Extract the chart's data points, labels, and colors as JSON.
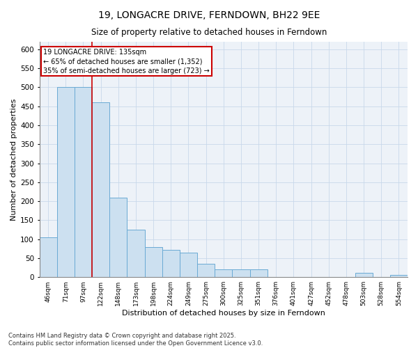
{
  "title": "19, LONGACRE DRIVE, FERNDOWN, BH22 9EE",
  "subtitle": "Size of property relative to detached houses in Ferndown",
  "xlabel": "Distribution of detached houses by size in Ferndown",
  "ylabel": "Number of detached properties",
  "footnote1": "Contains HM Land Registry data © Crown copyright and database right 2025.",
  "footnote2": "Contains public sector information licensed under the Open Government Licence v3.0.",
  "categories": [
    "46sqm",
    "71sqm",
    "97sqm",
    "122sqm",
    "148sqm",
    "173sqm",
    "198sqm",
    "224sqm",
    "249sqm",
    "275sqm",
    "300sqm",
    "325sqm",
    "351sqm",
    "376sqm",
    "401sqm",
    "427sqm",
    "452sqm",
    "478sqm",
    "503sqm",
    "528sqm",
    "554sqm"
  ],
  "values": [
    105,
    500,
    500,
    460,
    210,
    125,
    80,
    72,
    65,
    35,
    20,
    20,
    20,
    0,
    0,
    0,
    0,
    0,
    12,
    0,
    5
  ],
  "bar_color": "#cce0f0",
  "bar_edge_color": "#6aaad4",
  "grid_color": "#c8d8ea",
  "bg_color": "#edf2f8",
  "annotation_box_color": "#cc0000",
  "property_line_color": "#cc0000",
  "property_label": "19 LONGACRE DRIVE: 135sqm",
  "annotation_line1": "← 65% of detached houses are smaller (1,352)",
  "annotation_line2": "35% of semi-detached houses are larger (723) →",
  "property_line_x": 2.5,
  "ylim": [
    0,
    620
  ],
  "yticks": [
    0,
    50,
    100,
    150,
    200,
    250,
    300,
    350,
    400,
    450,
    500,
    550,
    600
  ]
}
